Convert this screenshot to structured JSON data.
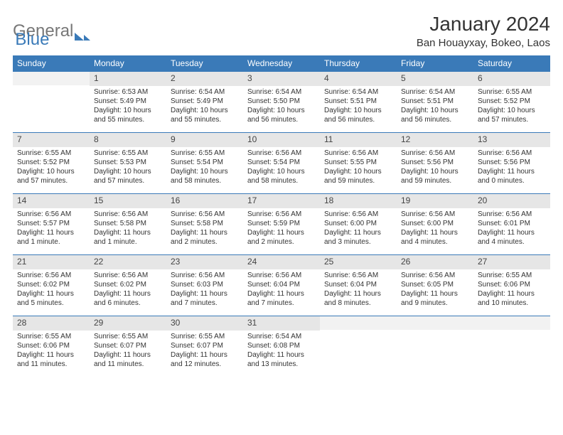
{
  "logo": {
    "part1": "General",
    "part2": "Blue"
  },
  "title": "January 2024",
  "location": "Ban Houayxay, Bokeo, Laos",
  "colors": {
    "header_bg": "#3a7ab8",
    "header_text": "#ffffff",
    "daynum_bg": "#e6e6e6",
    "page_bg": "#ffffff",
    "text": "#333333"
  },
  "day_labels": [
    "Sunday",
    "Monday",
    "Tuesday",
    "Wednesday",
    "Thursday",
    "Friday",
    "Saturday"
  ],
  "weeks": [
    [
      {
        "num": "",
        "sunrise": "",
        "sunset": "",
        "daylight": ""
      },
      {
        "num": "1",
        "sunrise": "Sunrise: 6:53 AM",
        "sunset": "Sunset: 5:49 PM",
        "daylight": "Daylight: 10 hours and 55 minutes."
      },
      {
        "num": "2",
        "sunrise": "Sunrise: 6:54 AM",
        "sunset": "Sunset: 5:49 PM",
        "daylight": "Daylight: 10 hours and 55 minutes."
      },
      {
        "num": "3",
        "sunrise": "Sunrise: 6:54 AM",
        "sunset": "Sunset: 5:50 PM",
        "daylight": "Daylight: 10 hours and 56 minutes."
      },
      {
        "num": "4",
        "sunrise": "Sunrise: 6:54 AM",
        "sunset": "Sunset: 5:51 PM",
        "daylight": "Daylight: 10 hours and 56 minutes."
      },
      {
        "num": "5",
        "sunrise": "Sunrise: 6:54 AM",
        "sunset": "Sunset: 5:51 PM",
        "daylight": "Daylight: 10 hours and 56 minutes."
      },
      {
        "num": "6",
        "sunrise": "Sunrise: 6:55 AM",
        "sunset": "Sunset: 5:52 PM",
        "daylight": "Daylight: 10 hours and 57 minutes."
      }
    ],
    [
      {
        "num": "7",
        "sunrise": "Sunrise: 6:55 AM",
        "sunset": "Sunset: 5:52 PM",
        "daylight": "Daylight: 10 hours and 57 minutes."
      },
      {
        "num": "8",
        "sunrise": "Sunrise: 6:55 AM",
        "sunset": "Sunset: 5:53 PM",
        "daylight": "Daylight: 10 hours and 57 minutes."
      },
      {
        "num": "9",
        "sunrise": "Sunrise: 6:55 AM",
        "sunset": "Sunset: 5:54 PM",
        "daylight": "Daylight: 10 hours and 58 minutes."
      },
      {
        "num": "10",
        "sunrise": "Sunrise: 6:56 AM",
        "sunset": "Sunset: 5:54 PM",
        "daylight": "Daylight: 10 hours and 58 minutes."
      },
      {
        "num": "11",
        "sunrise": "Sunrise: 6:56 AM",
        "sunset": "Sunset: 5:55 PM",
        "daylight": "Daylight: 10 hours and 59 minutes."
      },
      {
        "num": "12",
        "sunrise": "Sunrise: 6:56 AM",
        "sunset": "Sunset: 5:56 PM",
        "daylight": "Daylight: 10 hours and 59 minutes."
      },
      {
        "num": "13",
        "sunrise": "Sunrise: 6:56 AM",
        "sunset": "Sunset: 5:56 PM",
        "daylight": "Daylight: 11 hours and 0 minutes."
      }
    ],
    [
      {
        "num": "14",
        "sunrise": "Sunrise: 6:56 AM",
        "sunset": "Sunset: 5:57 PM",
        "daylight": "Daylight: 11 hours and 1 minute."
      },
      {
        "num": "15",
        "sunrise": "Sunrise: 6:56 AM",
        "sunset": "Sunset: 5:58 PM",
        "daylight": "Daylight: 11 hours and 1 minute."
      },
      {
        "num": "16",
        "sunrise": "Sunrise: 6:56 AM",
        "sunset": "Sunset: 5:58 PM",
        "daylight": "Daylight: 11 hours and 2 minutes."
      },
      {
        "num": "17",
        "sunrise": "Sunrise: 6:56 AM",
        "sunset": "Sunset: 5:59 PM",
        "daylight": "Daylight: 11 hours and 2 minutes."
      },
      {
        "num": "18",
        "sunrise": "Sunrise: 6:56 AM",
        "sunset": "Sunset: 6:00 PM",
        "daylight": "Daylight: 11 hours and 3 minutes."
      },
      {
        "num": "19",
        "sunrise": "Sunrise: 6:56 AM",
        "sunset": "Sunset: 6:00 PM",
        "daylight": "Daylight: 11 hours and 4 minutes."
      },
      {
        "num": "20",
        "sunrise": "Sunrise: 6:56 AM",
        "sunset": "Sunset: 6:01 PM",
        "daylight": "Daylight: 11 hours and 4 minutes."
      }
    ],
    [
      {
        "num": "21",
        "sunrise": "Sunrise: 6:56 AM",
        "sunset": "Sunset: 6:02 PM",
        "daylight": "Daylight: 11 hours and 5 minutes."
      },
      {
        "num": "22",
        "sunrise": "Sunrise: 6:56 AM",
        "sunset": "Sunset: 6:02 PM",
        "daylight": "Daylight: 11 hours and 6 minutes."
      },
      {
        "num": "23",
        "sunrise": "Sunrise: 6:56 AM",
        "sunset": "Sunset: 6:03 PM",
        "daylight": "Daylight: 11 hours and 7 minutes."
      },
      {
        "num": "24",
        "sunrise": "Sunrise: 6:56 AM",
        "sunset": "Sunset: 6:04 PM",
        "daylight": "Daylight: 11 hours and 7 minutes."
      },
      {
        "num": "25",
        "sunrise": "Sunrise: 6:56 AM",
        "sunset": "Sunset: 6:04 PM",
        "daylight": "Daylight: 11 hours and 8 minutes."
      },
      {
        "num": "26",
        "sunrise": "Sunrise: 6:56 AM",
        "sunset": "Sunset: 6:05 PM",
        "daylight": "Daylight: 11 hours and 9 minutes."
      },
      {
        "num": "27",
        "sunrise": "Sunrise: 6:55 AM",
        "sunset": "Sunset: 6:06 PM",
        "daylight": "Daylight: 11 hours and 10 minutes."
      }
    ],
    [
      {
        "num": "28",
        "sunrise": "Sunrise: 6:55 AM",
        "sunset": "Sunset: 6:06 PM",
        "daylight": "Daylight: 11 hours and 11 minutes."
      },
      {
        "num": "29",
        "sunrise": "Sunrise: 6:55 AM",
        "sunset": "Sunset: 6:07 PM",
        "daylight": "Daylight: 11 hours and 11 minutes."
      },
      {
        "num": "30",
        "sunrise": "Sunrise: 6:55 AM",
        "sunset": "Sunset: 6:07 PM",
        "daylight": "Daylight: 11 hours and 12 minutes."
      },
      {
        "num": "31",
        "sunrise": "Sunrise: 6:54 AM",
        "sunset": "Sunset: 6:08 PM",
        "daylight": "Daylight: 11 hours and 13 minutes."
      },
      {
        "num": "",
        "sunrise": "",
        "sunset": "",
        "daylight": ""
      },
      {
        "num": "",
        "sunrise": "",
        "sunset": "",
        "daylight": ""
      },
      {
        "num": "",
        "sunrise": "",
        "sunset": "",
        "daylight": ""
      }
    ]
  ]
}
